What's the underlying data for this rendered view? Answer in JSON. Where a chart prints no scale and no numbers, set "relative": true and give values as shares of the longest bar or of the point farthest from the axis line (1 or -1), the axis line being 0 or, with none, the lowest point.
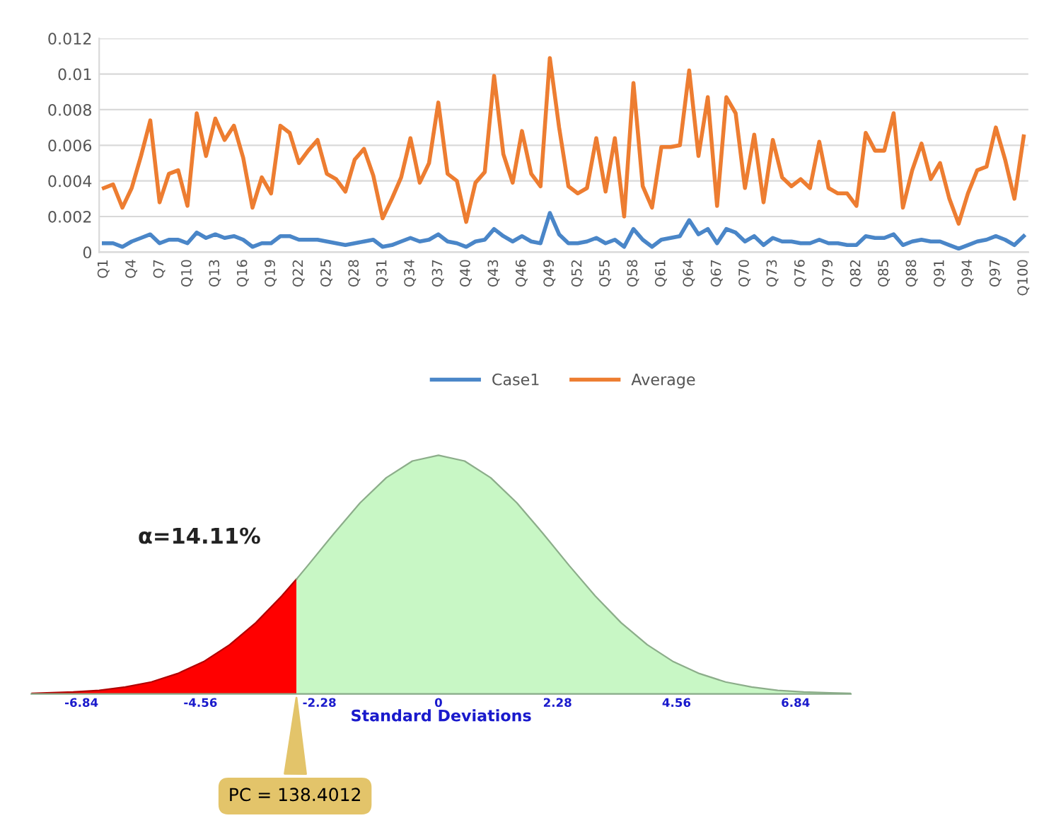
{
  "chart_data": [
    {
      "type": "line",
      "categories": [
        "Q1",
        null,
        null,
        "Q4",
        null,
        null,
        "Q7",
        null,
        null,
        "Q10",
        null,
        null,
        "Q13",
        null,
        null,
        "Q16",
        null,
        null,
        "Q19",
        null,
        null,
        "Q22",
        null,
        null,
        "Q25",
        null,
        null,
        "Q28",
        null,
        null,
        "Q31",
        null,
        null,
        "Q34",
        null,
        null,
        "Q37",
        null,
        null,
        "Q40",
        null,
        null,
        "Q43",
        null,
        null,
        "Q46",
        null,
        null,
        "Q49",
        null,
        null,
        "Q52",
        null,
        null,
        "Q55",
        null,
        null,
        "Q58",
        null,
        null,
        "Q61",
        null,
        null,
        "Q64",
        null,
        null,
        "Q67",
        null,
        null,
        "Q70",
        null,
        null,
        "Q73",
        null,
        null,
        "Q76",
        null,
        null,
        "Q79",
        null,
        null,
        "Q82",
        null,
        null,
        "Q85",
        null,
        null,
        "Q88",
        null,
        null,
        "Q91",
        null,
        null,
        "Q94",
        null,
        null,
        "Q97",
        null,
        null,
        "Q100"
      ],
      "series": [
        {
          "name": "Case1",
          "color": "#4a86c8",
          "values": [
            0.0005,
            0.0005,
            0.0003,
            0.0006,
            0.0008,
            0.001,
            0.0005,
            0.0007,
            0.0007,
            0.0005,
            0.0011,
            0.0008,
            0.001,
            0.0008,
            0.0009,
            0.0007,
            0.0003,
            0.0005,
            0.0005,
            0.0009,
            0.0009,
            0.0007,
            0.0007,
            0.0007,
            0.0006,
            0.0005,
            0.0004,
            0.0005,
            0.0006,
            0.0007,
            0.0003,
            0.0004,
            0.0006,
            0.0008,
            0.0006,
            0.0007,
            0.001,
            0.0006,
            0.0005,
            0.0003,
            0.0006,
            0.0007,
            0.0013,
            0.0009,
            0.0006,
            0.0009,
            0.0006,
            0.0005,
            0.0022,
            0.001,
            0.0005,
            0.0005,
            0.0006,
            0.0008,
            0.0005,
            0.0007,
            0.0003,
            0.0013,
            0.0007,
            0.0003,
            0.0007,
            0.0008,
            0.0009,
            0.0018,
            0.001,
            0.0013,
            0.0005,
            0.0013,
            0.0011,
            0.0006,
            0.0009,
            0.0004,
            0.0008,
            0.0006,
            0.0006,
            0.0005,
            0.0005,
            0.0007,
            0.0005,
            0.0005,
            0.0004,
            0.0004,
            0.0009,
            0.0008,
            0.0008,
            0.001,
            0.0004,
            0.0006,
            0.0007,
            0.0006,
            0.0006,
            0.0004,
            0.0002,
            0.0004,
            0.0006,
            0.0007,
            0.0009,
            0.0007,
            0.0004,
            0.0009
          ]
        },
        {
          "name": "Average",
          "color": "#ed7d31",
          "values": [
            0.0036,
            0.0038,
            0.0025,
            0.0036,
            0.0054,
            0.0074,
            0.0028,
            0.0044,
            0.0046,
            0.0026,
            0.0078,
            0.0054,
            0.0075,
            0.0063,
            0.0071,
            0.0053,
            0.0025,
            0.0042,
            0.0033,
            0.0071,
            0.0067,
            0.005,
            0.0057,
            0.0063,
            0.0044,
            0.0041,
            0.0034,
            0.0052,
            0.0058,
            0.0043,
            0.0019,
            0.003,
            0.0042,
            0.0064,
            0.0039,
            0.005,
            0.0084,
            0.0044,
            0.004,
            0.0017,
            0.0039,
            0.0045,
            0.0099,
            0.0055,
            0.0039,
            0.0068,
            0.0044,
            0.0037,
            0.0109,
            0.007,
            0.0037,
            0.0033,
            0.0036,
            0.0064,
            0.0034,
            0.0064,
            0.002,
            0.0095,
            0.0037,
            0.0025,
            0.0059,
            0.0059,
            0.006,
            0.0102,
            0.0054,
            0.0087,
            0.0026,
            0.0087,
            0.0078,
            0.0036,
            0.0066,
            0.0028,
            0.0063,
            0.0042,
            0.0037,
            0.0041,
            0.0036,
            0.0062,
            0.0036,
            0.0033,
            0.0033,
            0.0026,
            0.0067,
            0.0057,
            0.0057,
            0.0078,
            0.0025,
            0.0046,
            0.0061,
            0.0041,
            0.005,
            0.003,
            0.0016,
            0.0033,
            0.0046,
            0.0048,
            0.007,
            0.0052,
            0.003,
            0.0065
          ]
        }
      ],
      "ylim": [
        0,
        0.012
      ],
      "yticks": [
        0,
        0.002,
        0.004,
        0.006,
        0.008,
        0.01,
        0.012
      ],
      "grid": "y",
      "legend": "bottom"
    },
    {
      "type": "area",
      "relative": true,
      "xlabel": "Standard Deviations",
      "xlim": [
        -7.8,
        7.9
      ],
      "xticks": [
        -6.84,
        -4.56,
        -2.28,
        0,
        2.28,
        4.56,
        6.84
      ],
      "series": [
        {
          "color": "#ff0000",
          "x": [
            -7.8,
            -7.5,
            -7,
            -6.5,
            -6,
            -5.5,
            -5,
            -4.5,
            -4,
            -3.5,
            -3,
            -2.72
          ],
          "values": [
            0.002,
            0.004,
            0.008,
            0.015,
            0.029,
            0.05,
            0.085,
            0.135,
            0.206,
            0.298,
            0.411,
            0.481
          ]
        },
        {
          "color": "#c8f7c5",
          "x": [
            -2.72,
            -2.5,
            -2,
            -1.5,
            -1,
            -0.5,
            0,
            0.5,
            1,
            1.5,
            2,
            2.5,
            3,
            3.5,
            4,
            4.5,
            5,
            5.5,
            6,
            6.5,
            7,
            7.5,
            7.9
          ],
          "values": [
            0.481,
            0.539,
            0.673,
            0.801,
            0.906,
            0.976,
            1,
            0.976,
            0.906,
            0.801,
            0.673,
            0.539,
            0.411,
            0.298,
            0.206,
            0.135,
            0.085,
            0.05,
            0.029,
            0.015,
            0.008,
            0.004,
            0.002
          ]
        }
      ],
      "annotations": [
        "α=14.11%",
        {
          "text": "PC = 138.4012",
          "x": -2.72,
          "y": 0
        }
      ]
    }
  ]
}
